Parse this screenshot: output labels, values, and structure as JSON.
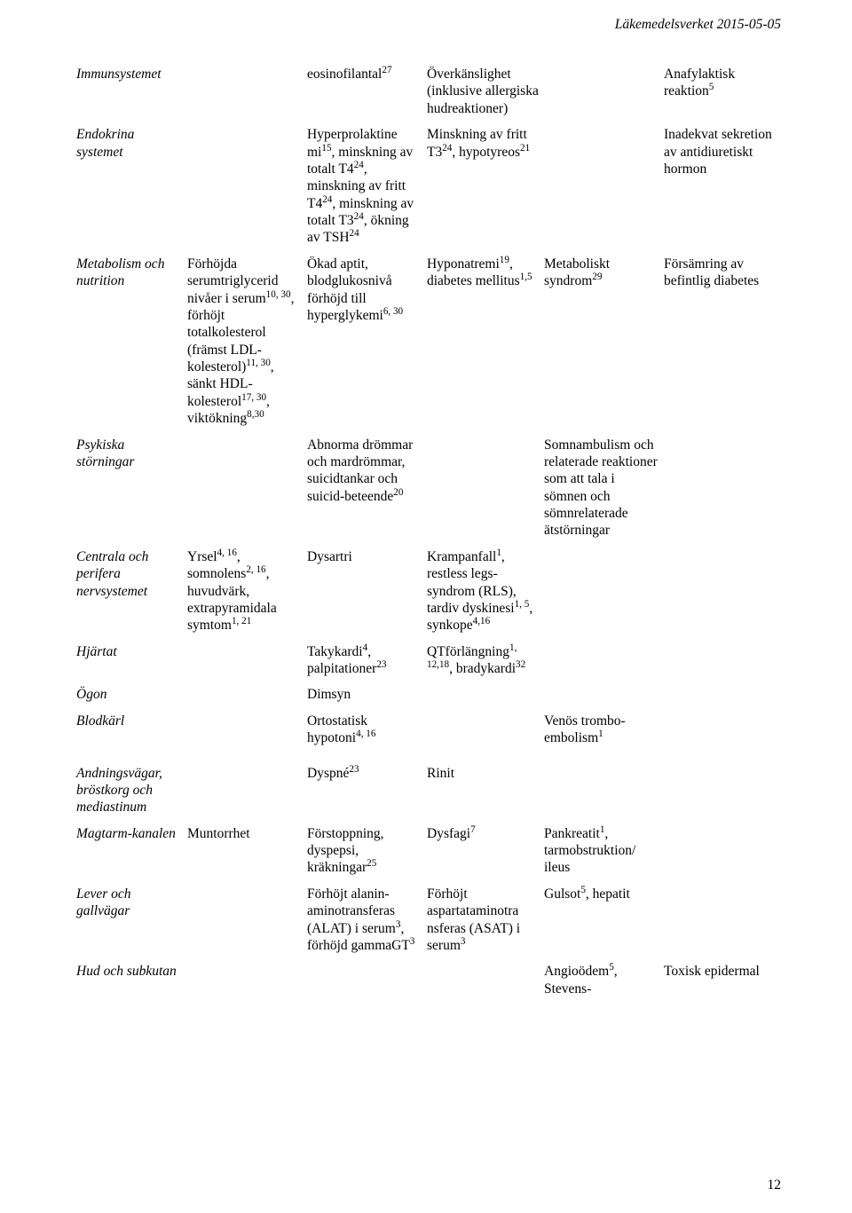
{
  "header": {
    "text": "Läkemedelsverket 2015-05-05"
  },
  "page_number": "12",
  "rows": [
    {
      "c0": "Immunsystemet",
      "c1": "",
      "c2": "eosinofilantal<sup>27</sup>",
      "c3": "Överkänslighet (inklusive allergiska hudreaktioner)",
      "c4": "",
      "c5": "Anafylaktisk reaktion<sup>5</sup>"
    },
    {
      "c0": "Endokrina systemet",
      "c1": "",
      "c2": "Hyperprolaktine mi<sup>15</sup>, minskning av totalt T4<sup>24</sup>, minskning av fritt T4<sup>24</sup>, minskning av totalt T3<sup>24</sup>, ökning av TSH<sup>24</sup>",
      "c3": "Minskning av fritt T3<sup>24</sup>, hypotyreos<sup>21</sup>",
      "c4": "",
      "c5": "Inadekvat sekretion av antidiuretiskt hormon"
    },
    {
      "c0": "Metabolism och nutrition",
      "c1": "Förhöjda serumtriglycerid nivåer i serum<sup>10, 30</sup>, förhöjt totalkolesterol (främst LDL-kolesterol)<sup>11, 30</sup>, sänkt HDL-kolesterol<sup>17, 30</sup>, viktökning<sup>8,30</sup>",
      "c2": "Ökad aptit, blodglukosnivå förhöjd till hyperglykemi<sup>6, 30</sup>",
      "c3": "Hyponatremi<sup>19</sup>, diabetes mellitus<sup>1,5</sup>",
      "c4": "Metaboliskt syndrom<sup>29</sup>",
      "c5": "Försämring av befintlig diabetes"
    },
    {
      "c0": "Psykiska störningar",
      "c1": "",
      "c2": "Abnorma drömmar och mardrömmar, suicidtankar och suicid-beteende<sup>20</sup>",
      "c3": "",
      "c4": "Somnambulism och relaterade reaktioner som att tala i sömnen och sömnrelaterade ätstörningar",
      "c5": ""
    },
    {
      "c0": "Centrala och perifera nervsystemet",
      "c1": "Yrsel<sup>4, 16</sup>, somnolens<sup>2, 16</sup>, huvudvärk, extrapyramidala symtom<sup>1, 21</sup>",
      "c2": "Dysartri",
      "c3": "Krampanfall<sup>1</sup>, restless legs-syndrom (RLS), tardiv dyskinesi<sup>1, 5</sup>, synkope<sup>4,16</sup>",
      "c4": "",
      "c5": ""
    },
    {
      "c0": "Hjärtat",
      "c1": "",
      "c2": "Takykardi<sup>4</sup>, palpitationer<sup>23</sup>",
      "c3": "QTförlängning<sup>1, 12,18</sup>, bradykardi<sup>32</sup>",
      "c4": "",
      "c5": ""
    },
    {
      "c0": "Ögon",
      "c1": "",
      "c2": "Dimsyn",
      "c3": "",
      "c4": "",
      "c5": ""
    },
    {
      "c0": "Blodkärl",
      "c1": "",
      "c2": "Ortostatisk hypotoni<sup>4, 16</sup>",
      "c3": "",
      "c4": "Venös trombo-embolism<sup>1</sup>",
      "c5": ""
    },
    {
      "gap": true
    },
    {
      "c0": "Andningsvägar, bröstkorg och mediastinum",
      "c1": "",
      "c2": "Dyspné<sup>23</sup>",
      "c3": "Rinit",
      "c4": "",
      "c5": ""
    },
    {
      "c0": "Magtarm-kanalen",
      "c1": "Muntorrhet",
      "c2": "Förstoppning, dyspepsi, kräkningar<sup>25</sup>",
      "c3": "Dysfagi<sup>7</sup>",
      "c4": "Pankreatit<sup>1</sup>, tarmobstruktion/ ileus",
      "c5": ""
    },
    {
      "c0": "Lever och gallvägar",
      "c1": "",
      "c2": "Förhöjt alanin-aminotransferas (ALAT) i serum<sup>3</sup>, förhöjd gammaGT<sup>3</sup>",
      "c3": "Förhöjt aspartataminotra nsferas (ASAT) i serum<sup>3</sup>",
      "c4": "Gulsot<sup>5</sup>, hepatit",
      "c5": ""
    },
    {
      "c0": "Hud och subkutan",
      "c1": "",
      "c2": "",
      "c3": "",
      "c4": "Angioödem<sup>5</sup>, Stevens-",
      "c5": "Toxisk epidermal"
    }
  ]
}
